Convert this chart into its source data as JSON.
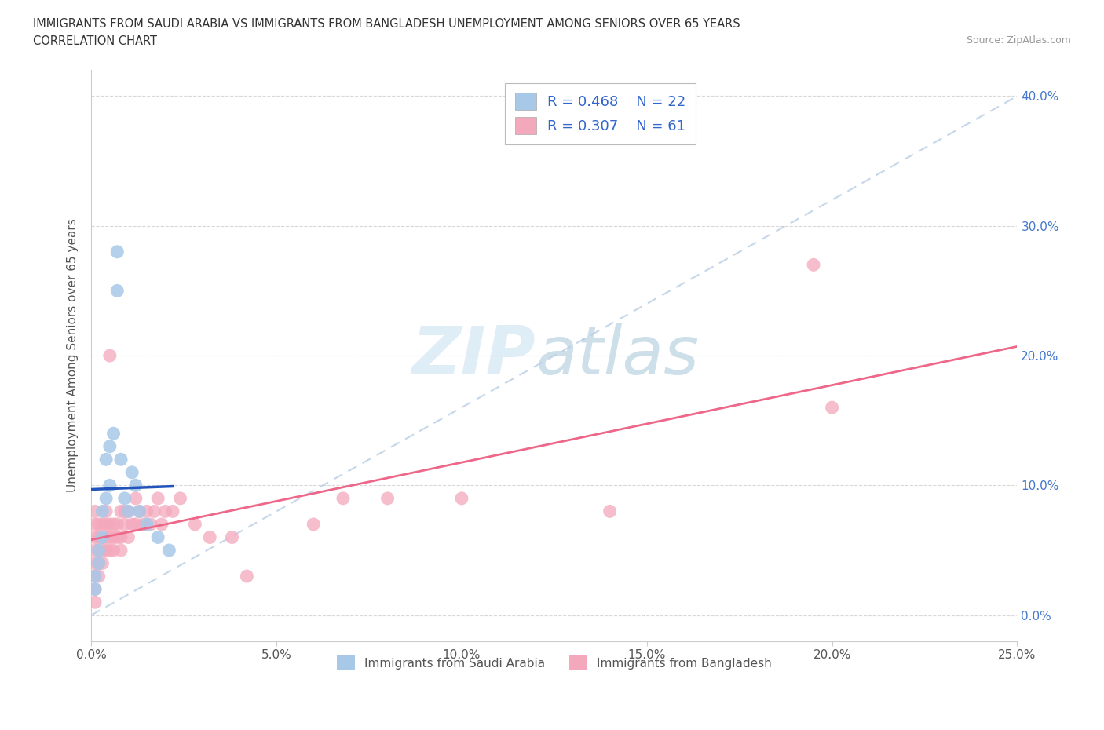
{
  "title_line1": "IMMIGRANTS FROM SAUDI ARABIA VS IMMIGRANTS FROM BANGLADESH UNEMPLOYMENT AMONG SENIORS OVER 65 YEARS",
  "title_line2": "CORRELATION CHART",
  "source": "Source: ZipAtlas.com",
  "ylabel": "Unemployment Among Seniors over 65 years",
  "watermark_zip": "ZIP",
  "watermark_atlas": "atlas",
  "legend_label1": "Immigrants from Saudi Arabia",
  "legend_label2": "Immigrants from Bangladesh",
  "r1": 0.468,
  "n1": 22,
  "r2": 0.307,
  "n2": 61,
  "color1": "#a8c8e8",
  "color2": "#f4a8bc",
  "line_color1": "#2255bb",
  "line_color2": "#ee6688",
  "dashed_color": "#b8cce4",
  "xlim": [
    0.0,
    0.25
  ],
  "ylim": [
    -0.02,
    0.42
  ],
  "xticks": [
    0.0,
    0.05,
    0.1,
    0.15,
    0.2,
    0.25
  ],
  "yticks": [
    0.0,
    0.1,
    0.2,
    0.3,
    0.4
  ],
  "background_color": "#ffffff",
  "grid_color": "#d8d8d8",
  "saudi_x": [
    0.001,
    0.001,
    0.002,
    0.002,
    0.003,
    0.003,
    0.004,
    0.004,
    0.005,
    0.005,
    0.006,
    0.007,
    0.007,
    0.008,
    0.009,
    0.01,
    0.011,
    0.012,
    0.013,
    0.015,
    0.018,
    0.021
  ],
  "saudi_y": [
    0.02,
    0.03,
    0.04,
    0.05,
    0.06,
    0.08,
    0.09,
    0.12,
    0.1,
    0.13,
    0.14,
    0.25,
    0.28,
    0.12,
    0.09,
    0.08,
    0.11,
    0.1,
    0.08,
    0.07,
    0.06,
    0.05
  ],
  "bangladesh_x": [
    0.001,
    0.001,
    0.001,
    0.001,
    0.001,
    0.001,
    0.001,
    0.001,
    0.002,
    0.002,
    0.002,
    0.002,
    0.002,
    0.003,
    0.003,
    0.003,
    0.003,
    0.004,
    0.004,
    0.004,
    0.004,
    0.005,
    0.005,
    0.005,
    0.005,
    0.006,
    0.006,
    0.006,
    0.007,
    0.007,
    0.008,
    0.008,
    0.008,
    0.009,
    0.009,
    0.01,
    0.01,
    0.011,
    0.012,
    0.012,
    0.013,
    0.014,
    0.015,
    0.016,
    0.017,
    0.018,
    0.019,
    0.02,
    0.022,
    0.024,
    0.028,
    0.032,
    0.038,
    0.042,
    0.06,
    0.068,
    0.08,
    0.1,
    0.14,
    0.195,
    0.2
  ],
  "bangladesh_y": [
    0.01,
    0.02,
    0.03,
    0.04,
    0.05,
    0.06,
    0.07,
    0.08,
    0.03,
    0.04,
    0.05,
    0.06,
    0.07,
    0.04,
    0.05,
    0.06,
    0.07,
    0.05,
    0.06,
    0.07,
    0.08,
    0.05,
    0.06,
    0.07,
    0.2,
    0.05,
    0.06,
    0.07,
    0.06,
    0.07,
    0.05,
    0.06,
    0.08,
    0.07,
    0.08,
    0.06,
    0.08,
    0.07,
    0.07,
    0.09,
    0.08,
    0.07,
    0.08,
    0.07,
    0.08,
    0.09,
    0.07,
    0.08,
    0.08,
    0.09,
    0.07,
    0.06,
    0.06,
    0.03,
    0.07,
    0.09,
    0.09,
    0.09,
    0.08,
    0.27,
    0.16
  ]
}
